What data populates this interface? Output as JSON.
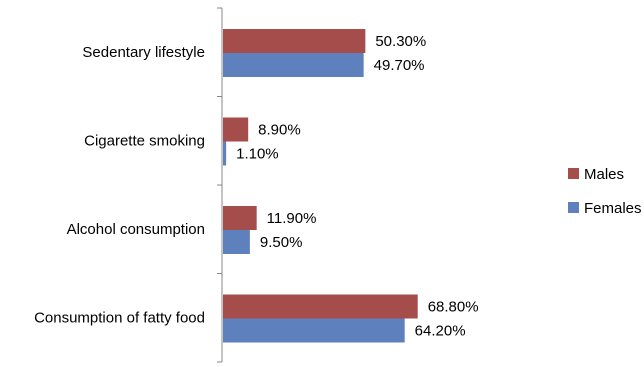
{
  "chart_data": {
    "type": "bar",
    "orientation": "horizontal",
    "categories": [
      "Sedentary lifestyle",
      "Cigarette smoking",
      "Alcohol consumption",
      "Consumption of fatty  food"
    ],
    "series": [
      {
        "name": "Males",
        "color": "#A54D4B",
        "values": [
          50.3,
          8.9,
          11.9,
          68.8
        ],
        "labels": [
          "50.30%",
          "8.90%",
          "11.90%",
          "68.80%"
        ]
      },
      {
        "name": "Females",
        "color": "#5E81BE",
        "values": [
          49.7,
          1.1,
          9.5,
          64.2
        ],
        "labels": [
          "49.70%",
          "1.10%",
          "9.50%",
          "64.20%"
        ]
      }
    ],
    "xlim": [
      0,
      100
    ],
    "grid": false,
    "legend": {
      "position": "right"
    },
    "title": "",
    "xlabel": "",
    "ylabel": ""
  }
}
